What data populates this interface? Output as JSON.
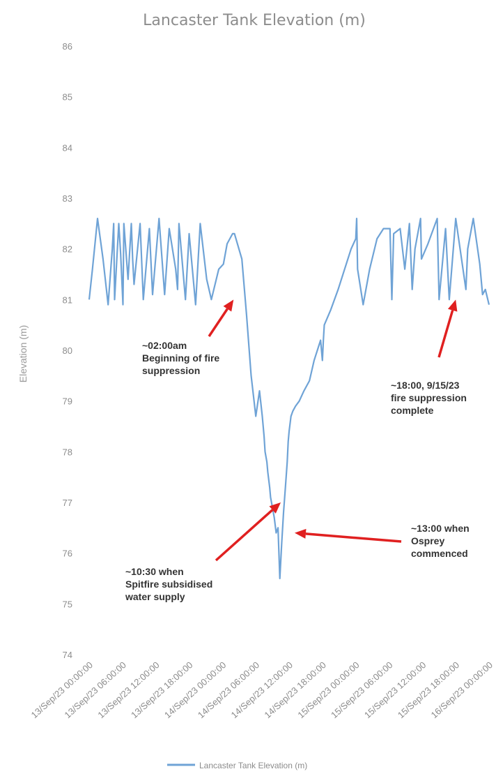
{
  "chart_data": {
    "type": "line",
    "title": "Lancaster Tank Elevation (m)",
    "xlabel": "",
    "ylabel": "Elevation (m)",
    "ylim": [
      74,
      86
    ],
    "yticks": [
      74,
      75,
      76,
      77,
      78,
      79,
      80,
      81,
      82,
      83,
      84,
      85,
      86
    ],
    "xlim": [
      "13/Sep/23 00:00",
      "16/Sep/23 00:00"
    ],
    "xtick_labels": [
      "13/Sep/23 00:00:00",
      "13/Sep/23 06:00:00",
      "13/Sep/23 12:00:00",
      "13/Sep/23 18:00:00",
      "14/Sep/23 00:00:00",
      "14/Sep/23 06:00:00",
      "14/Sep/23 12:00:00",
      "14/Sep/23 18:00:00",
      "15/Sep/23 00:00:00",
      "15/Sep/23 06:00:00",
      "15/Sep/23 12:00:00",
      "15/Sep/23 18:00:00",
      "16/Sep/23 00:00:00"
    ],
    "grid": false,
    "legend": "bottom",
    "color": "#6fa3d6",
    "series": [
      {
        "name": "Lancaster Tank Elevation (m)",
        "x": [
          "13/Sep/23 00:00",
          "13/Sep/23 00:35",
          "13/Sep/23 01:30",
          "13/Sep/23 02:30",
          "13/Sep/23 03:25",
          "13/Sep/23 04:10",
          "13/Sep/23 04:25",
          "13/Sep/23 04:35",
          "13/Sep/23 05:20",
          "13/Sep/23 05:40",
          "13/Sep/23 06:05",
          "13/Sep/23 06:15",
          "13/Sep/23 07:00",
          "13/Sep/23 07:35",
          "13/Sep/23 07:50",
          "13/Sep/23 08:05",
          "13/Sep/23 09:10",
          "13/Sep/23 09:45",
          "13/Sep/23 10:50",
          "13/Sep/23 11:25",
          "13/Sep/23 12:35",
          "13/Sep/23 13:35",
          "13/Sep/23 14:25",
          "13/Sep/23 15:35",
          "13/Sep/23 15:55",
          "13/Sep/23 16:10",
          "13/Sep/23 17:20",
          "13/Sep/23 18:00",
          "13/Sep/23 19:10",
          "13/Sep/23 20:00",
          "13/Sep/23 21:10",
          "13/Sep/23 22:00",
          "13/Sep/23 23:20",
          "14/Sep/23 00:10",
          "14/Sep/23 00:50",
          "14/Sep/23 01:50",
          "14/Sep/23 02:10",
          "14/Sep/23 03:30",
          "14/Sep/23 04:20",
          "14/Sep/23 05:10",
          "14/Sep/23 06:00",
          "14/Sep/23 06:40",
          "14/Sep/23 07:10",
          "14/Sep/23 07:30",
          "14/Sep/23 07:40",
          "14/Sep/23 08:00",
          "14/Sep/23 08:10",
          "14/Sep/23 08:30",
          "14/Sep/23 08:40",
          "14/Sep/23 09:00",
          "14/Sep/23 09:20",
          "14/Sep/23 09:40",
          "14/Sep/23 10:00",
          "14/Sep/23 10:20",
          "14/Sep/23 10:40",
          "14/Sep/23 11:00",
          "14/Sep/23 11:20",
          "14/Sep/23 11:40",
          "14/Sep/23 11:50",
          "14/Sep/23 12:00",
          "14/Sep/23 12:20",
          "14/Sep/23 12:40",
          "14/Sep/23 13:10",
          "14/Sep/23 13:50",
          "14/Sep/23 14:40",
          "14/Sep/23 15:40",
          "14/Sep/23 16:30",
          "14/Sep/23 17:40",
          "14/Sep/23 18:00",
          "14/Sep/23 18:10",
          "14/Sep/23 18:20",
          "14/Sep/23 19:30",
          "14/Sep/23 20:50",
          "14/Sep/23 22:00",
          "14/Sep/23 23:10",
          "15/Sep/23 00:00",
          "15/Sep/23 00:10",
          "15/Sep/23 00:20",
          "15/Sep/23 01:20",
          "15/Sep/23 02:30",
          "15/Sep/23 03:50",
          "15/Sep/23 05:00",
          "15/Sep/23 06:10",
          "15/Sep/23 06:30",
          "15/Sep/23 06:50",
          "15/Sep/23 08:00",
          "15/Sep/23 08:50",
          "15/Sep/23 09:40",
          "15/Sep/23 10:10",
          "15/Sep/23 10:40",
          "15/Sep/23 11:40",
          "15/Sep/23 11:50",
          "15/Sep/23 13:00",
          "15/Sep/23 14:40",
          "15/Sep/23 15:00",
          "15/Sep/23 16:10",
          "15/Sep/23 16:50",
          "15/Sep/23 18:00",
          "15/Sep/23 19:50",
          "15/Sep/23 20:10",
          "15/Sep/23 21:10",
          "15/Sep/23 22:20",
          "15/Sep/23 22:50",
          "15/Sep/23 23:20",
          "16/Sep/23 00:00"
        ],
        "values": [
          81.0,
          81.6,
          82.6,
          81.8,
          80.9,
          82.0,
          82.5,
          81.0,
          82.5,
          81.9,
          80.9,
          82.5,
          81.4,
          82.5,
          81.8,
          81.3,
          82.5,
          81.0,
          82.4,
          81.1,
          82.6,
          81.1,
          82.4,
          81.6,
          81.2,
          82.5,
          81.0,
          82.3,
          80.9,
          82.5,
          81.4,
          81.0,
          81.6,
          81.7,
          82.1,
          82.3,
          82.3,
          81.8,
          80.7,
          79.5,
          78.7,
          79.2,
          78.7,
          78.3,
          78.0,
          77.8,
          77.6,
          77.3,
          77.1,
          76.9,
          76.7,
          76.4,
          76.5,
          75.5,
          76.2,
          76.8,
          77.3,
          77.8,
          78.2,
          78.4,
          78.7,
          78.8,
          78.9,
          79.0,
          79.2,
          79.4,
          79.8,
          80.2,
          79.8,
          80.2,
          80.5,
          80.8,
          81.2,
          81.6,
          82.0,
          82.2,
          82.6,
          81.6,
          80.9,
          81.6,
          82.2,
          82.4,
          82.4,
          81.0,
          82.3,
          82.4,
          81.6,
          82.5,
          81.2,
          82.0,
          82.6,
          81.8,
          82.1,
          82.6,
          81.0,
          82.4,
          81.0,
          82.6,
          81.2,
          82.0,
          82.6,
          81.7,
          81.1,
          81.2,
          80.9
        ]
      }
    ],
    "annotations": [
      {
        "lines": [
          "~02:00am",
          "Beginning of fire",
          "suppression"
        ],
        "point": [
          "14/Sep/23 02:00",
          81.0
        ]
      },
      {
        "lines": [
          "~18:00, 9/15/23",
          "fire suppression",
          "complete"
        ],
        "point": [
          "15/Sep/23 18:00",
          81.0
        ]
      },
      {
        "lines": [
          "~10:30 when",
          "Spitfire subsidised",
          "water supply"
        ],
        "point": [
          "14/Sep/23 10:30",
          77.0
        ]
      },
      {
        "lines": [
          "~13:00 when",
          "Osprey",
          "commenced"
        ],
        "point": [
          "14/Sep/23 13:00",
          76.4
        ]
      }
    ],
    "annotation_arrow_color": "#e02020"
  }
}
